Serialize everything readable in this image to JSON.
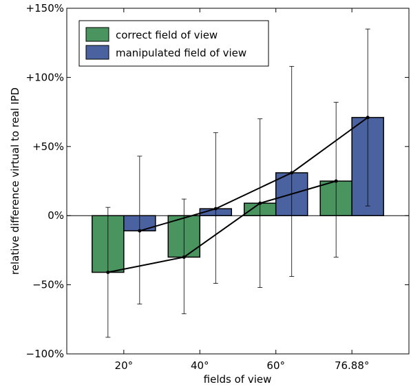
{
  "chart_data": {
    "type": "bar",
    "title": "",
    "xlabel": "fields of view",
    "ylabel": "relative difference virtual to real IPD",
    "ylim": [
      -100,
      150
    ],
    "yticks": [
      -100,
      -50,
      0,
      50,
      100,
      150
    ],
    "ytick_labels": [
      "−100%",
      "−50%",
      "0%",
      "+50%",
      "+100%",
      "+150%"
    ],
    "categories": [
      "20°",
      "40°",
      "60°",
      "76.88°"
    ],
    "grid": false,
    "legend_position": "top-left",
    "series": [
      {
        "name": "correct field of view",
        "color": "#4a9460",
        "values": [
          -41,
          -30,
          9,
          25
        ],
        "error_low": [
          -88,
          -71,
          -52,
          -30
        ],
        "error_high": [
          6,
          12,
          70,
          82
        ]
      },
      {
        "name": "manipulated field of view",
        "color": "#4a63a0",
        "values": [
          -11,
          5,
          31,
          71
        ],
        "error_low": [
          -64,
          -49,
          -44,
          7
        ],
        "error_high": [
          43,
          60,
          108,
          135
        ]
      }
    ]
  }
}
